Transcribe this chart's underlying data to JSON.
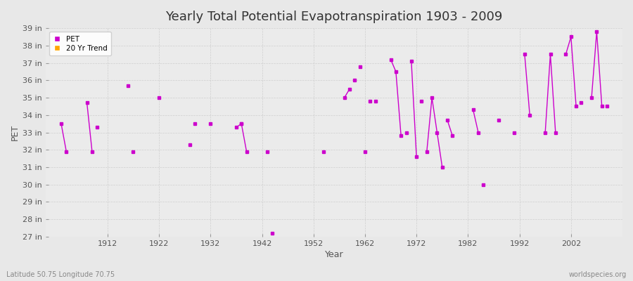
{
  "title": "Yearly Total Potential Evapotranspiration 1903 - 2009",
  "xlabel": "Year",
  "ylabel": "PET",
  "bottom_left": "Latitude 50.75 Longitude 70.75",
  "bottom_right": "worldspecies.org",
  "pet_color": "#CC00CC",
  "trend_color": "#FFA500",
  "fig_facecolor": "#E8E8E8",
  "plot_facecolor": "#EBEBEB",
  "ylim": [
    27,
    39
  ],
  "xlim": [
    1900,
    2012
  ],
  "xticks": [
    1912,
    1922,
    1932,
    1942,
    1952,
    1962,
    1972,
    1982,
    1992,
    2002
  ],
  "yticks": [
    27,
    28,
    29,
    30,
    31,
    32,
    33,
    34,
    35,
    36,
    37,
    38,
    39
  ],
  "connected_segments": [
    [
      [
        1903,
        33.5
      ],
      [
        1904,
        31.9
      ]
    ],
    [
      [
        1908,
        34.7
      ],
      [
        1909,
        31.9
      ]
    ],
    [
      [
        1937,
        33.3
      ],
      [
        1938,
        33.5
      ]
    ],
    [
      [
        1938,
        33.5
      ],
      [
        1939,
        31.9
      ]
    ],
    [
      [
        1958,
        35.0
      ],
      [
        1959,
        35.5
      ]
    ],
    [
      [
        1967,
        37.2
      ],
      [
        1968,
        36.5
      ],
      [
        1969,
        32.8
      ]
    ],
    [
      [
        1971,
        37.1
      ],
      [
        1972,
        31.6
      ]
    ],
    [
      [
        1974,
        31.9
      ],
      [
        1975,
        35.0
      ],
      [
        1976,
        33.0
      ],
      [
        1977,
        31.0
      ]
    ],
    [
      [
        1978,
        33.7
      ],
      [
        1979,
        32.8
      ]
    ],
    [
      [
        1983,
        34.3
      ],
      [
        1984,
        33.0
      ]
    ],
    [
      [
        1993,
        37.5
      ],
      [
        1994,
        34.0
      ]
    ],
    [
      [
        1997,
        33.0
      ],
      [
        1998,
        37.5
      ],
      [
        1999,
        33.0
      ]
    ],
    [
      [
        2001,
        37.5
      ],
      [
        2002,
        38.5
      ],
      [
        2003,
        34.5
      ]
    ],
    [
      [
        2006,
        35.0
      ],
      [
        2007,
        38.8
      ],
      [
        2008,
        34.5
      ]
    ]
  ],
  "isolated_points": [
    [
      1910,
      33.3
    ],
    [
      1916,
      35.7
    ],
    [
      1917,
      31.9
    ],
    [
      1922,
      35.0
    ],
    [
      1928,
      32.3
    ],
    [
      1929,
      33.5
    ],
    [
      1932,
      33.5
    ],
    [
      1943,
      31.9
    ],
    [
      1944,
      27.2
    ],
    [
      1954,
      31.9
    ],
    [
      1960,
      36.0
    ],
    [
      1961,
      36.8
    ],
    [
      1962,
      31.9
    ],
    [
      1963,
      34.8
    ],
    [
      1964,
      34.8
    ],
    [
      1970,
      33.0
    ],
    [
      1973,
      34.8
    ],
    [
      1985,
      30.0
    ],
    [
      1988,
      33.7
    ],
    [
      1991,
      33.0
    ],
    [
      2004,
      34.7
    ],
    [
      2009,
      34.5
    ]
  ]
}
